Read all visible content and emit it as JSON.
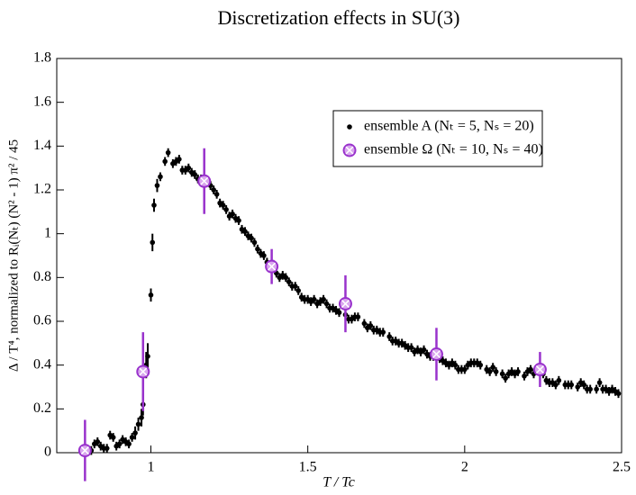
{
  "chart_data": {
    "type": "scatter",
    "title": "Discretization effects in SU(3)",
    "xlabel": "T / Tc",
    "ylabel": "Δ / T⁴, normalized to Rᵢ(Nₜ) (N² - 1) π² / 45",
    "xlim": [
      0.7,
      2.5
    ],
    "xticks": [
      1,
      1.5,
      2,
      2.5
    ],
    "ylim": [
      0,
      1.8
    ],
    "yticks": [
      0,
      0.2,
      0.4,
      0.6,
      0.8,
      1,
      1.2,
      1.4,
      1.6,
      1.8
    ],
    "legend": "upper right",
    "series": [
      {
        "name": "ensemble A (Nₜ = 5, Nₛ = 20)",
        "color": "#000000",
        "x": [
          0.81,
          0.82,
          0.83,
          0.84,
          0.85,
          0.86,
          0.87,
          0.88,
          0.89,
          0.9,
          0.91,
          0.92,
          0.93,
          0.94,
          0.95,
          0.96,
          0.97,
          0.975,
          0.985,
          0.99,
          1.0,
          1.005,
          1.01,
          1.02,
          1.03,
          1.045,
          1.055,
          1.07,
          1.08,
          1.09,
          1.1,
          1.11,
          1.12,
          1.13,
          1.14,
          1.15,
          1.16,
          1.18,
          1.19,
          1.2,
          1.21,
          1.22,
          1.23,
          1.24,
          1.25,
          1.26,
          1.27,
          1.28,
          1.29,
          1.3,
          1.31,
          1.32,
          1.33,
          1.34,
          1.35,
          1.36,
          1.37,
          1.38,
          1.39,
          1.4,
          1.41,
          1.42,
          1.43,
          1.44,
          1.45,
          1.46,
          1.47,
          1.48,
          1.49,
          1.5,
          1.51,
          1.52,
          1.53,
          1.54,
          1.55,
          1.56,
          1.57,
          1.58,
          1.59,
          1.6,
          1.62,
          1.63,
          1.64,
          1.65,
          1.66,
          1.68,
          1.69,
          1.7,
          1.71,
          1.72,
          1.73,
          1.74,
          1.76,
          1.77,
          1.78,
          1.79,
          1.8,
          1.81,
          1.82,
          1.83,
          1.84,
          1.85,
          1.86,
          1.87,
          1.88,
          1.89,
          1.9,
          1.92,
          1.93,
          1.94,
          1.95,
          1.96,
          1.97,
          1.98,
          1.99,
          2.0,
          2.01,
          2.02,
          2.03,
          2.04,
          2.05,
          2.07,
          2.08,
          2.09,
          2.1,
          2.12,
          2.13,
          2.14,
          2.15,
          2.16,
          2.17,
          2.19,
          2.2,
          2.21,
          2.22,
          2.25,
          2.26,
          2.27,
          2.28,
          2.29,
          2.3,
          2.32,
          2.33,
          2.34,
          2.36,
          2.37,
          2.38,
          2.39,
          2.4,
          2.42,
          2.43,
          2.44,
          2.45,
          2.46,
          2.47,
          2.48,
          2.49
        ],
        "values": [
          0.01,
          0.04,
          0.05,
          0.03,
          0.02,
          0.02,
          0.08,
          0.07,
          0.03,
          0.04,
          0.06,
          0.05,
          0.04,
          0.07,
          0.09,
          0.13,
          0.16,
          0.22,
          0.4,
          0.44,
          0.72,
          0.96,
          1.13,
          1.22,
          1.26,
          1.33,
          1.37,
          1.32,
          1.33,
          1.34,
          1.29,
          1.29,
          1.3,
          1.28,
          1.27,
          1.25,
          1.25,
          1.24,
          1.22,
          1.2,
          1.18,
          1.14,
          1.13,
          1.11,
          1.08,
          1.09,
          1.07,
          1.06,
          1.02,
          1.01,
          0.99,
          0.98,
          0.96,
          0.93,
          0.91,
          0.9,
          0.87,
          0.85,
          0.86,
          0.82,
          0.8,
          0.81,
          0.8,
          0.78,
          0.76,
          0.76,
          0.74,
          0.71,
          0.7,
          0.7,
          0.69,
          0.7,
          0.68,
          0.69,
          0.7,
          0.68,
          0.66,
          0.66,
          0.65,
          0.64,
          0.63,
          0.61,
          0.61,
          0.62,
          0.62,
          0.59,
          0.57,
          0.58,
          0.56,
          0.56,
          0.55,
          0.55,
          0.53,
          0.51,
          0.51,
          0.5,
          0.5,
          0.49,
          0.48,
          0.48,
          0.46,
          0.47,
          0.46,
          0.47,
          0.45,
          0.44,
          0.44,
          0.43,
          0.42,
          0.41,
          0.4,
          0.41,
          0.4,
          0.38,
          0.38,
          0.38,
          0.4,
          0.41,
          0.41,
          0.41,
          0.4,
          0.38,
          0.37,
          0.39,
          0.37,
          0.36,
          0.34,
          0.36,
          0.37,
          0.36,
          0.37,
          0.35,
          0.37,
          0.38,
          0.36,
          0.36,
          0.33,
          0.32,
          0.32,
          0.31,
          0.33,
          0.31,
          0.31,
          0.31,
          0.3,
          0.32,
          0.31,
          0.29,
          0.29,
          0.29,
          0.32,
          0.29,
          0.29,
          0.28,
          0.29,
          0.28,
          0.27
        ],
        "errors": [
          0.02,
          0.02,
          0.02,
          0.02,
          0.02,
          0.02,
          0.02,
          0.02,
          0.02,
          0.02,
          0.02,
          0.02,
          0.02,
          0.02,
          0.03,
          0.03,
          0.04,
          0.05,
          0.06,
          0.06,
          0.03,
          0.04,
          0.03,
          0.03,
          0.02,
          0.02,
          0.02,
          0.02,
          0.02,
          0.02,
          0.02,
          0.02,
          0.02,
          0.02,
          0.02,
          0.02,
          0.02,
          0.02,
          0.02,
          0.02,
          0.02,
          0.02,
          0.02,
          0.02,
          0.02,
          0.02,
          0.02,
          0.02,
          0.02,
          0.02,
          0.02,
          0.02,
          0.02,
          0.02,
          0.02,
          0.02,
          0.02,
          0.02,
          0.02,
          0.02,
          0.02,
          0.02,
          0.02,
          0.02,
          0.02,
          0.02,
          0.02,
          0.02,
          0.02,
          0.02,
          0.02,
          0.02,
          0.02,
          0.02,
          0.02,
          0.02,
          0.02,
          0.02,
          0.02,
          0.02,
          0.02,
          0.02,
          0.02,
          0.02,
          0.02,
          0.02,
          0.02,
          0.02,
          0.02,
          0.02,
          0.02,
          0.02,
          0.02,
          0.02,
          0.02,
          0.02,
          0.02,
          0.02,
          0.02,
          0.02,
          0.02,
          0.02,
          0.02,
          0.02,
          0.02,
          0.02,
          0.02,
          0.02,
          0.02,
          0.02,
          0.02,
          0.02,
          0.02,
          0.02,
          0.02,
          0.02,
          0.02,
          0.02,
          0.02,
          0.02,
          0.02,
          0.02,
          0.02,
          0.02,
          0.02,
          0.02,
          0.02,
          0.02,
          0.02,
          0.02,
          0.02,
          0.02,
          0.02,
          0.02,
          0.02,
          0.02,
          0.02,
          0.02,
          0.02,
          0.02,
          0.02,
          0.02,
          0.02,
          0.02,
          0.02,
          0.02,
          0.02,
          0.02,
          0.02,
          0.02,
          0.02,
          0.02,
          0.02,
          0.02,
          0.02,
          0.02,
          0.02
        ]
      },
      {
        "name": "ensemble Ω (Nₜ = 10, Nₛ = 40)",
        "color": "#9932cc",
        "x": [
          0.79,
          0.975,
          1.17,
          1.385,
          1.62,
          1.91,
          2.24
        ],
        "values": [
          0.01,
          0.37,
          1.24,
          0.85,
          0.68,
          0.45,
          0.38
        ],
        "errors": [
          0.14,
          0.18,
          0.15,
          0.08,
          0.13,
          0.12,
          0.08
        ]
      }
    ]
  }
}
